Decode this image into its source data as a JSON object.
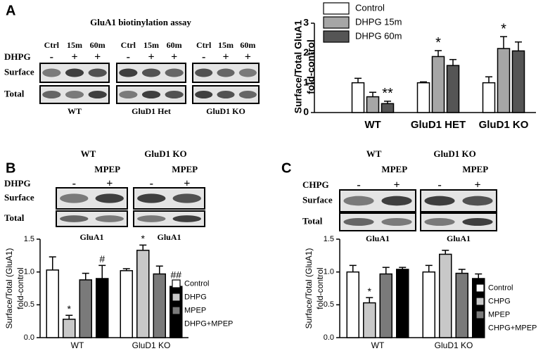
{
  "chart_data": [
    {
      "type": "bar",
      "letter": "A",
      "ylabel": [
        "Surface/Total GluA1",
        "fold-control"
      ],
      "categories": [
        "WT",
        "GluD1 HET",
        "GluD1 KO"
      ],
      "series": [
        {
          "name": "Control",
          "color": "#ffffff",
          "values": [
            1.0,
            1.0,
            1.0
          ],
          "errors": [
            0.15,
            0.03,
            0.2
          ]
        },
        {
          "name": "DHPG 15m",
          "color": "#a6a6a6",
          "values": [
            0.53,
            1.88,
            2.15
          ],
          "errors": [
            0.15,
            0.2,
            0.4
          ],
          "significance": [
            null,
            "*",
            "*"
          ]
        },
        {
          "name": "DHPG 60m",
          "color": "#555555",
          "values": [
            0.3,
            1.58,
            2.07
          ],
          "errors": [
            0.08,
            0.2,
            0.3
          ],
          "significance": [
            "**",
            null,
            null
          ]
        }
      ],
      "ylim": [
        0,
        3
      ],
      "yticks": [
        0,
        1,
        2,
        3
      ],
      "legend": "top"
    },
    {
      "type": "bar",
      "ylabel": [
        "Surface/Total (GluA1)",
        "fold-control"
      ],
      "categories": [
        "WT",
        "GluD1 KO"
      ],
      "series": [
        {
          "name": "Control",
          "color": "#ffffff",
          "values": [
            1.03,
            1.02
          ],
          "errors": [
            0.2,
            0.03
          ]
        },
        {
          "name": "DHPG",
          "color": "#c8c8c8",
          "values": [
            0.28,
            1.33
          ],
          "errors": [
            0.06,
            0.08
          ],
          "significance": [
            "*",
            "*"
          ]
        },
        {
          "name": "MPEP",
          "color": "#7a7a7a",
          "values": [
            0.88,
            0.97
          ],
          "errors": [
            0.1,
            0.12
          ]
        },
        {
          "name": "DHPG+MPEP",
          "color": "#000000",
          "values": [
            0.9,
            0.78
          ],
          "errors": [
            0.2,
            0.08
          ],
          "significance": [
            "#",
            "##"
          ]
        }
      ],
      "ylim": [
        0,
        1.5
      ],
      "yticks": [
        {
          "value": 0,
          "label": "0.0"
        },
        {
          "value": 0.5,
          "label": "0.5"
        },
        {
          "value": 1,
          "label": "1.0"
        },
        {
          "value": 1.5,
          "label": "1.5"
        }
      ],
      "legend": "right"
    },
    {
      "type": "bar",
      "ylabel": [
        "Surface/Total (GluA1)",
        "fold-control"
      ],
      "categories": [
        "WT",
        "GluD1 KO"
      ],
      "series": [
        {
          "name": "Control",
          "color": "#ffffff",
          "values": [
            1.0,
            1.0
          ],
          "errors": [
            0.1,
            0.1
          ]
        },
        {
          "name": "CHPG",
          "color": "#c8c8c8",
          "values": [
            0.53,
            1.27
          ],
          "errors": [
            0.08,
            0.06
          ],
          "significance": [
            "*",
            null
          ]
        },
        {
          "name": "MPEP",
          "color": "#7a7a7a",
          "values": [
            0.97,
            0.98
          ],
          "errors": [
            0.1,
            0.06
          ]
        },
        {
          "name": "CHPG+MPEP",
          "color": "#000000",
          "values": [
            1.04,
            0.9
          ],
          "errors": [
            0.03,
            0.07
          ]
        }
      ],
      "ylim": [
        0,
        1.5
      ],
      "yticks": [
        {
          "value": 0,
          "label": "0.0"
        },
        {
          "value": 0.5,
          "label": "0.5"
        },
        {
          "value": 1,
          "label": "1.0"
        },
        {
          "value": 1.5,
          "label": "1.5"
        }
      ],
      "legend": "right"
    }
  ],
  "blots": [
    {
      "title": "GluA1 biotinylation assay",
      "columns": [
        "Ctrl",
        "15m",
        "60m"
      ],
      "treatment": "DHPG",
      "signs": [
        "-",
        "+",
        "+"
      ],
      "rows": [
        "Surface",
        "Total"
      ],
      "groups": [
        "WT",
        "GluD1 Het",
        "GluD1 KO"
      ]
    },
    {
      "letter": "B",
      "headers": [
        {
          "name": "WT",
          "sub": "MPEP"
        },
        {
          "name": "GluD1 KO",
          "sub": "MPEP"
        }
      ],
      "treatment": "DHPG",
      "signs": [
        "-",
        "+",
        "-",
        "+"
      ],
      "rows": [
        "Surface",
        "Total"
      ],
      "groups": [
        "GluA1",
        "GluA1"
      ]
    },
    {
      "letter": "C",
      "headers": [
        {
          "name": "WT",
          "sub": "MPEP"
        },
        {
          "name": "GluD1 KO",
          "sub": "MPEP"
        }
      ],
      "treatment": "CHPG",
      "signs": [
        "-",
        "+",
        "-",
        "+"
      ],
      "rows": [
        "Surface",
        "Total"
      ],
      "groups": [
        "GluA1",
        "GluA1"
      ]
    }
  ]
}
